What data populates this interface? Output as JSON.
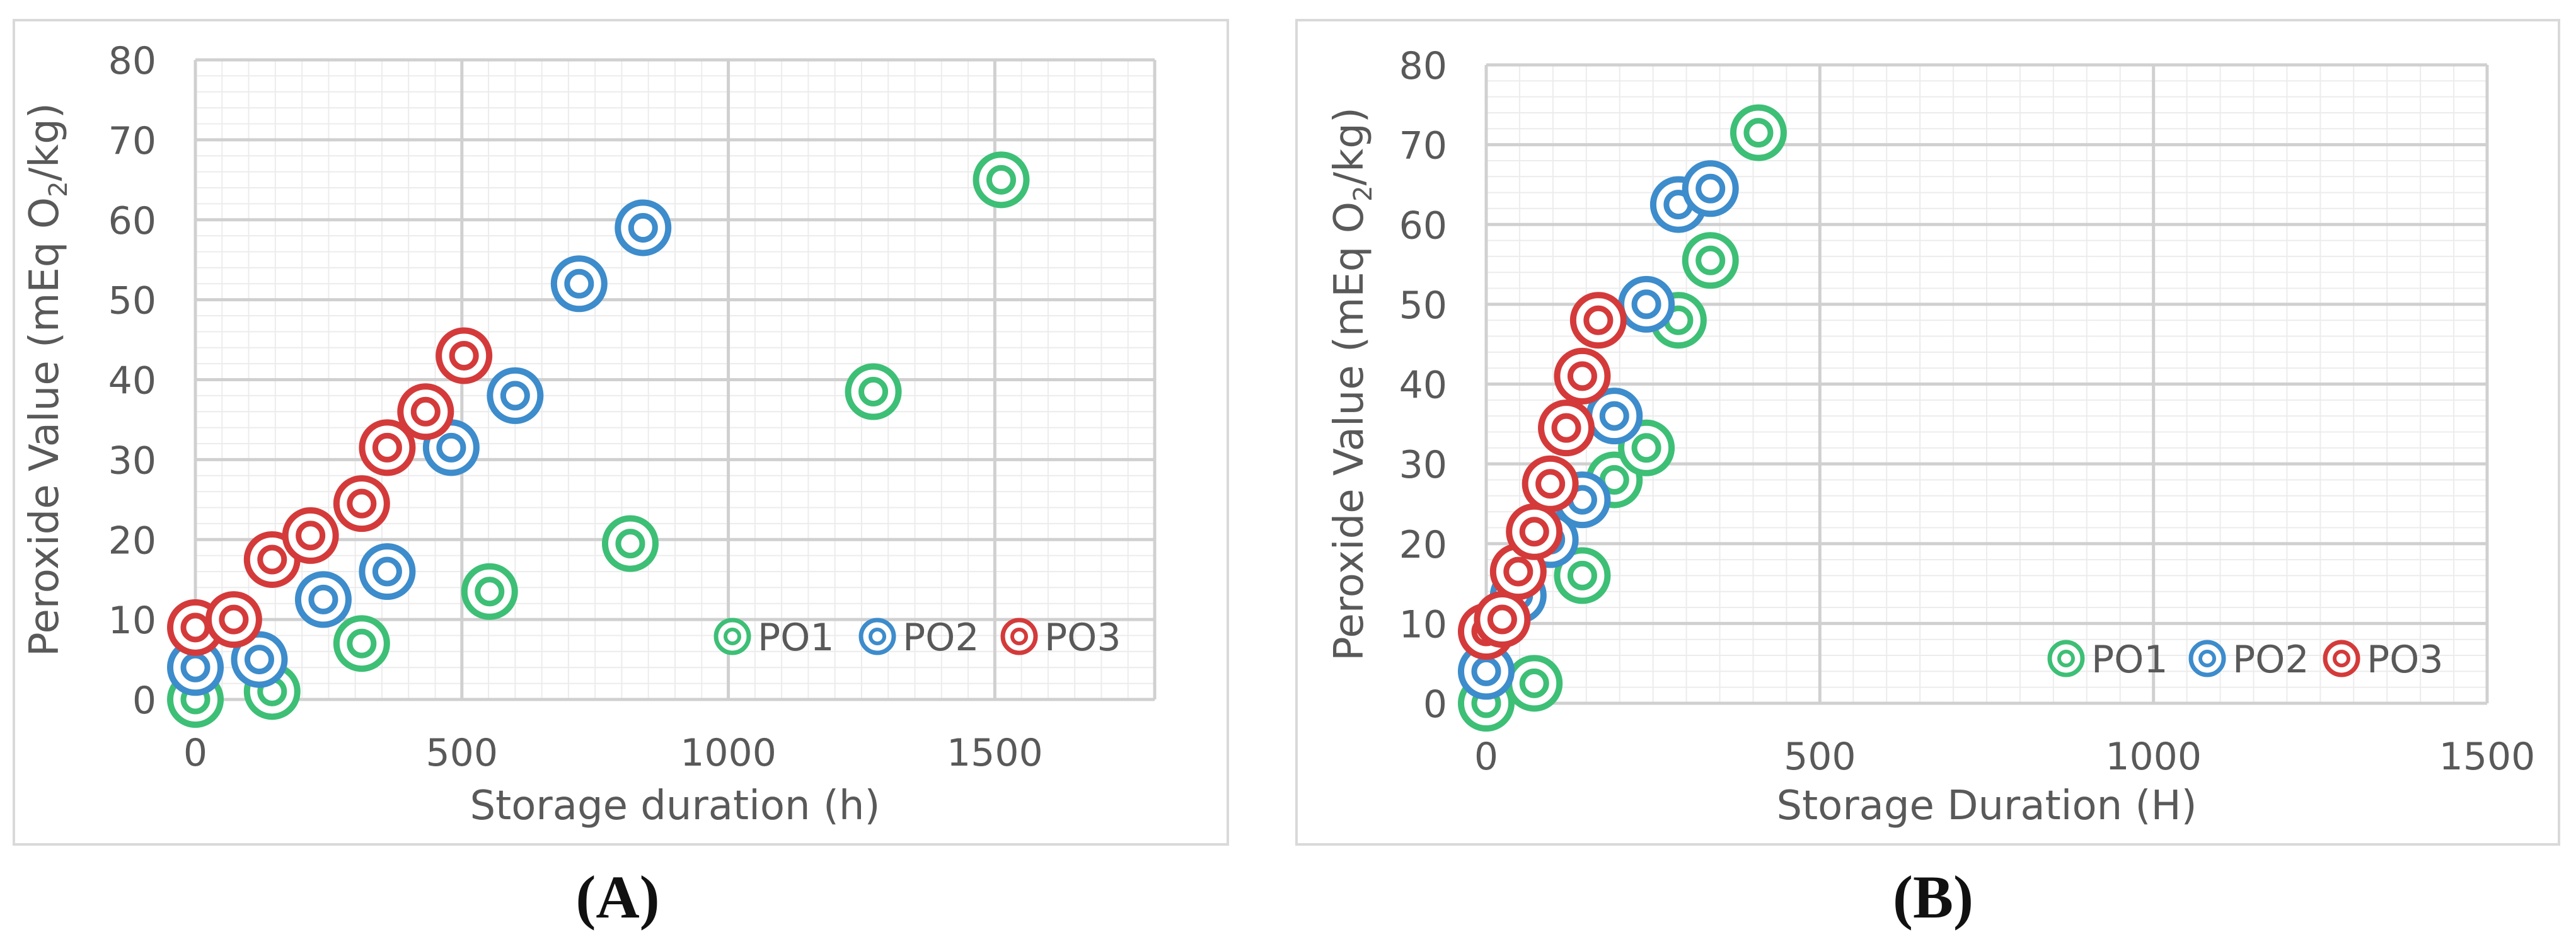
{
  "colors": {
    "PO1": "#3dbf76",
    "PO2": "#3d8ccc",
    "PO3": "#d43a3a",
    "axis_text": "#595959",
    "grid_major": "#d0d0d0",
    "grid_minor": "#ececec",
    "frame": "#d9d9d9"
  },
  "chart_data": [
    {
      "panel": "A",
      "type": "scatter",
      "xlabel": "Storage duration (h)",
      "ylabel_parts": [
        "Peroxide Value (mEq O",
        "2",
        "/kg)"
      ],
      "xlim": [
        0,
        1800
      ],
      "ylim": [
        0,
        80
      ],
      "xticks": [
        0,
        500,
        1000,
        1500
      ],
      "yticks": [
        0,
        10,
        20,
        30,
        40,
        50,
        60,
        70,
        80
      ],
      "x_minor_step": 50,
      "y_minor_step": 2,
      "legend_position": "bottom-right",
      "series": [
        {
          "name": "PO1",
          "points": [
            [
              0,
              0
            ],
            [
              144,
              1
            ],
            [
              312,
              7
            ],
            [
              552,
              13.5
            ],
            [
              816,
              19.5
            ],
            [
              1272,
              38.5
            ],
            [
              1512,
              65
            ]
          ]
        },
        {
          "name": "PO2",
          "points": [
            [
              0,
              4
            ],
            [
              120,
              5
            ],
            [
              240,
              12.5
            ],
            [
              360,
              16
            ],
            [
              480,
              31.5
            ],
            [
              600,
              38
            ],
            [
              720,
              52
            ],
            [
              840,
              59
            ]
          ]
        },
        {
          "name": "PO3",
          "points": [
            [
              0,
              9
            ],
            [
              72,
              10
            ],
            [
              144,
              17.5
            ],
            [
              216,
              20.5
            ],
            [
              312,
              24.5
            ],
            [
              360,
              31.5
            ],
            [
              432,
              36
            ],
            [
              504,
              43
            ]
          ]
        }
      ]
    },
    {
      "panel": "B",
      "type": "scatter",
      "xlabel": "Storage Duration (H)",
      "ylabel_parts": [
        "Peroxide Value (mEq O",
        "2",
        "/kg)"
      ],
      "xlim": [
        0,
        1500
      ],
      "ylim": [
        0,
        80
      ],
      "xticks": [
        0,
        500,
        1000,
        1500
      ],
      "yticks": [
        0,
        10,
        20,
        30,
        40,
        50,
        60,
        70,
        80
      ],
      "x_minor_step": 50,
      "y_minor_step": 2,
      "legend_position": "bottom-right",
      "series": [
        {
          "name": "PO1",
          "points": [
            [
              0,
              0
            ],
            [
              72,
              2.5
            ],
            [
              144,
              16
            ],
            [
              192,
              28
            ],
            [
              240,
              32
            ],
            [
              288,
              48
            ],
            [
              336,
              55.5
            ],
            [
              408,
              71.5
            ]
          ]
        },
        {
          "name": "PO2",
          "points": [
            [
              0,
              4
            ],
            [
              48,
              13.5
            ],
            [
              96,
              20.5
            ],
            [
              144,
              25.5
            ],
            [
              192,
              36
            ],
            [
              240,
              50
            ],
            [
              288,
              62.5
            ],
            [
              336,
              64.5
            ]
          ]
        },
        {
          "name": "PO3",
          "points": [
            [
              0,
              9
            ],
            [
              24,
              10.5
            ],
            [
              48,
              16.5
            ],
            [
              72,
              21.5
            ],
            [
              96,
              27.5
            ],
            [
              120,
              34.5
            ],
            [
              144,
              41
            ],
            [
              168,
              48
            ]
          ]
        }
      ]
    }
  ],
  "panel_labels": [
    {
      "open": "(",
      "letter": "A",
      "close": ")"
    },
    {
      "open": "(",
      "letter": "B",
      "close": ")"
    }
  ]
}
